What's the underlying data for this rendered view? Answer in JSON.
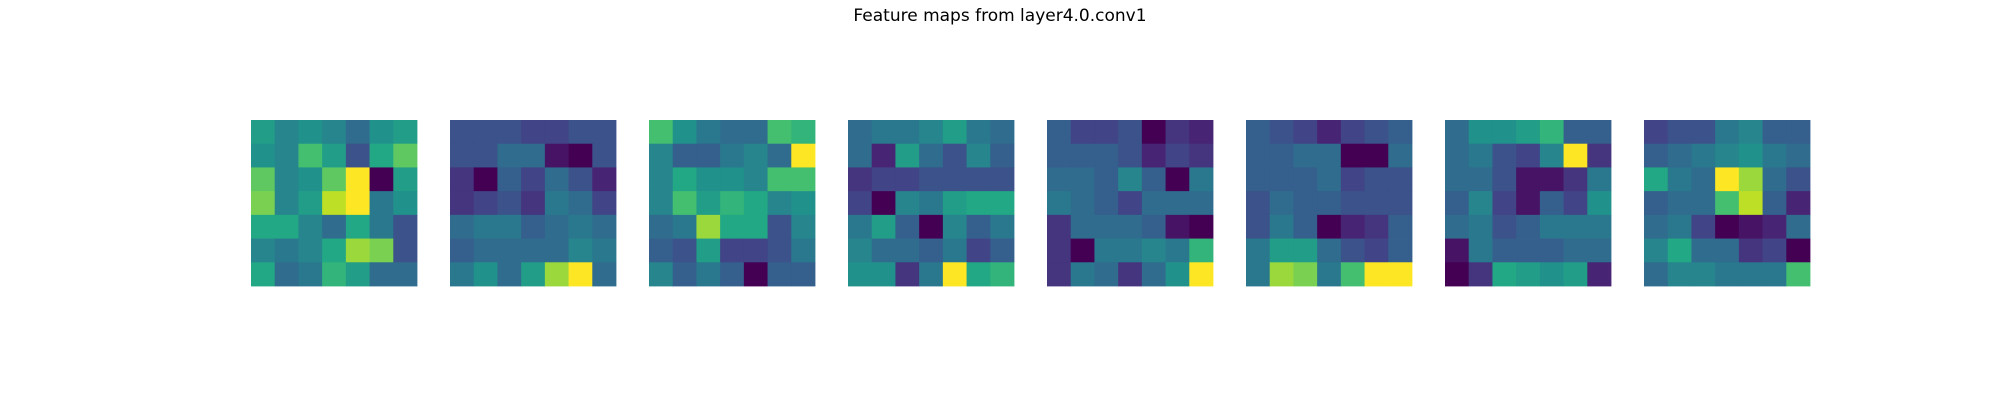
{
  "figure": {
    "title": "Feature maps from layer4.0.conv1"
  },
  "chart_data": {
    "type": "heatmap",
    "title": "Feature maps from layer4.0.conv1",
    "colormap": "viridis",
    "value_range": [
      0,
      1
    ],
    "grid": false,
    "axes_visible": false,
    "maps": [
      [
        [
          0.55,
          0.45,
          0.5,
          0.45,
          0.35,
          0.5,
          0.55
        ],
        [
          0.5,
          0.45,
          0.7,
          0.55,
          0.25,
          0.6,
          0.75
        ],
        [
          0.75,
          0.45,
          0.5,
          0.75,
          1.0,
          0.0,
          0.55
        ],
        [
          0.8,
          0.45,
          0.55,
          0.9,
          1.0,
          0.4,
          0.5
        ],
        [
          0.6,
          0.6,
          0.45,
          0.35,
          0.6,
          0.4,
          0.25
        ],
        [
          0.45,
          0.4,
          0.45,
          0.6,
          0.85,
          0.8,
          0.25
        ],
        [
          0.6,
          0.35,
          0.4,
          0.65,
          0.55,
          0.35,
          0.35
        ]
      ],
      [
        [
          0.25,
          0.25,
          0.25,
          0.2,
          0.2,
          0.25,
          0.25
        ],
        [
          0.25,
          0.25,
          0.35,
          0.35,
          0.05,
          0.0,
          0.25
        ],
        [
          0.15,
          0.0,
          0.3,
          0.2,
          0.35,
          0.25,
          0.1
        ],
        [
          0.15,
          0.2,
          0.25,
          0.15,
          0.4,
          0.35,
          0.2
        ],
        [
          0.35,
          0.4,
          0.4,
          0.3,
          0.35,
          0.4,
          0.35
        ],
        [
          0.3,
          0.35,
          0.35,
          0.35,
          0.35,
          0.45,
          0.4
        ],
        [
          0.4,
          0.5,
          0.35,
          0.55,
          0.85,
          1.0,
          0.35
        ]
      ],
      [
        [
          0.7,
          0.5,
          0.4,
          0.35,
          0.35,
          0.7,
          0.65
        ],
        [
          0.45,
          0.3,
          0.3,
          0.4,
          0.45,
          0.35,
          1.0
        ],
        [
          0.45,
          0.6,
          0.5,
          0.5,
          0.45,
          0.7,
          0.7
        ],
        [
          0.45,
          0.7,
          0.55,
          0.65,
          0.6,
          0.45,
          0.5
        ],
        [
          0.35,
          0.4,
          0.85,
          0.6,
          0.6,
          0.25,
          0.45
        ],
        [
          0.3,
          0.25,
          0.55,
          0.2,
          0.2,
          0.25,
          0.4
        ],
        [
          0.45,
          0.3,
          0.4,
          0.3,
          0.0,
          0.3,
          0.3
        ]
      ],
      [
        [
          0.35,
          0.4,
          0.4,
          0.45,
          0.55,
          0.4,
          0.35
        ],
        [
          0.35,
          0.1,
          0.55,
          0.35,
          0.25,
          0.45,
          0.3
        ],
        [
          0.15,
          0.2,
          0.2,
          0.25,
          0.25,
          0.25,
          0.25
        ],
        [
          0.2,
          0.0,
          0.45,
          0.4,
          0.55,
          0.6,
          0.6
        ],
        [
          0.4,
          0.55,
          0.3,
          0.0,
          0.45,
          0.3,
          0.4
        ],
        [
          0.45,
          0.35,
          0.35,
          0.3,
          0.4,
          0.2,
          0.3
        ],
        [
          0.5,
          0.5,
          0.15,
          0.4,
          1.0,
          0.6,
          0.65
        ]
      ],
      [
        [
          0.3,
          0.2,
          0.2,
          0.25,
          0.0,
          0.15,
          0.1
        ],
        [
          0.3,
          0.3,
          0.3,
          0.25,
          0.1,
          0.2,
          0.15
        ],
        [
          0.35,
          0.35,
          0.3,
          0.45,
          0.3,
          0.0,
          0.4
        ],
        [
          0.4,
          0.35,
          0.3,
          0.2,
          0.35,
          0.35,
          0.35
        ],
        [
          0.15,
          0.35,
          0.35,
          0.35,
          0.3,
          0.05,
          0.0
        ],
        [
          0.15,
          0.0,
          0.4,
          0.4,
          0.45,
          0.4,
          0.65
        ],
        [
          0.15,
          0.4,
          0.35,
          0.15,
          0.35,
          0.5,
          1.0
        ]
      ],
      [
        [
          0.3,
          0.25,
          0.2,
          0.1,
          0.2,
          0.25,
          0.3
        ],
        [
          0.3,
          0.3,
          0.35,
          0.35,
          0.0,
          0.0,
          0.35
        ],
        [
          0.3,
          0.3,
          0.3,
          0.35,
          0.2,
          0.25,
          0.25
        ],
        [
          0.25,
          0.35,
          0.3,
          0.3,
          0.25,
          0.25,
          0.25
        ],
        [
          0.25,
          0.4,
          0.3,
          0.0,
          0.1,
          0.15,
          0.3
        ],
        [
          0.4,
          0.55,
          0.55,
          0.35,
          0.25,
          0.2,
          0.3
        ],
        [
          0.4,
          0.85,
          0.8,
          0.4,
          0.7,
          1.0,
          1.0
        ]
      ],
      [
        [
          0.35,
          0.5,
          0.5,
          0.55,
          0.65,
          0.3,
          0.3
        ],
        [
          0.35,
          0.4,
          0.25,
          0.2,
          0.45,
          1.0,
          0.15
        ],
        [
          0.35,
          0.35,
          0.25,
          0.05,
          0.05,
          0.15,
          0.4
        ],
        [
          0.3,
          0.45,
          0.2,
          0.05,
          0.3,
          0.2,
          0.5
        ],
        [
          0.35,
          0.4,
          0.25,
          0.3,
          0.4,
          0.4,
          0.4
        ],
        [
          0.05,
          0.4,
          0.3,
          0.3,
          0.3,
          0.35,
          0.35
        ],
        [
          0.0,
          0.15,
          0.6,
          0.55,
          0.5,
          0.55,
          0.1
        ]
      ],
      [
        [
          0.2,
          0.25,
          0.25,
          0.4,
          0.45,
          0.3,
          0.3
        ],
        [
          0.3,
          0.35,
          0.4,
          0.45,
          0.5,
          0.4,
          0.35
        ],
        [
          0.6,
          0.4,
          0.35,
          1.0,
          0.85,
          0.35,
          0.25
        ],
        [
          0.3,
          0.35,
          0.35,
          0.7,
          0.9,
          0.3,
          0.1
        ],
        [
          0.35,
          0.4,
          0.2,
          0.0,
          0.05,
          0.1,
          0.35
        ],
        [
          0.45,
          0.6,
          0.35,
          0.35,
          0.15,
          0.2,
          0.0
        ],
        [
          0.35,
          0.45,
          0.45,
          0.4,
          0.4,
          0.4,
          0.7
        ]
      ]
    ]
  }
}
